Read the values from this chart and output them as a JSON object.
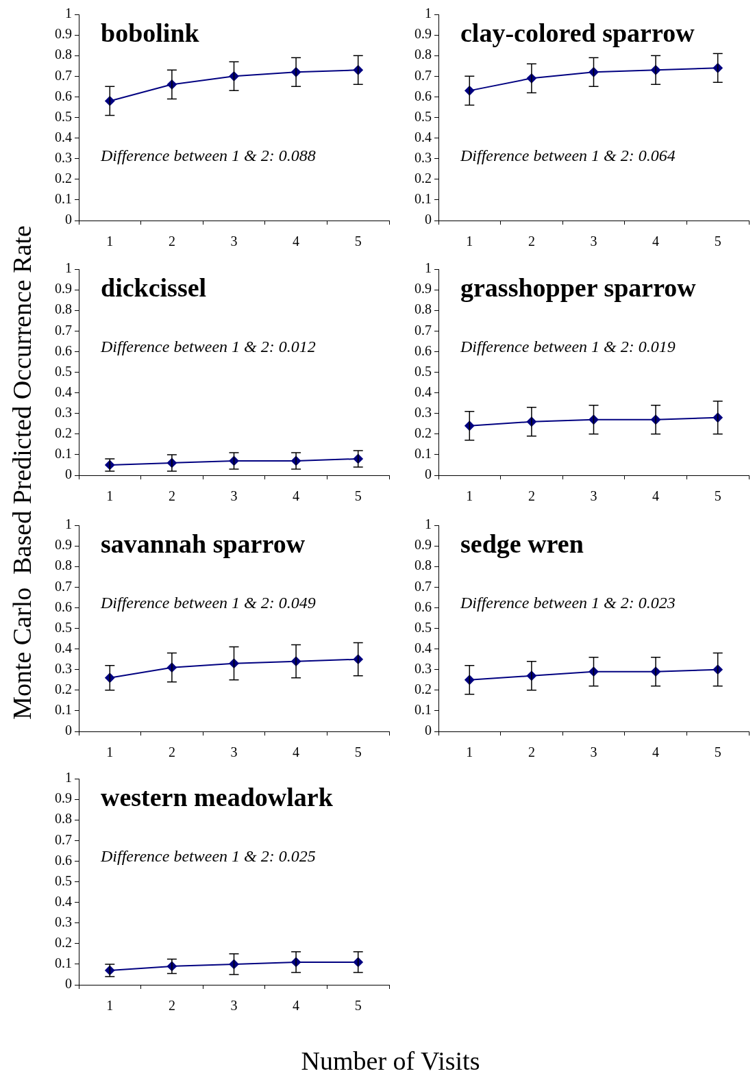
{
  "chart_data": [
    {
      "type": "line",
      "title": "bobolink",
      "annotations": [
        "Difference between 1 & 2: 0.088"
      ],
      "ylabel": "Monte Carlo  Based Predicted Occurrence Rate",
      "xlabel": "Number of Visits",
      "categories": [
        "1",
        "2",
        "3",
        "4",
        "5"
      ],
      "series": [
        {
          "color": "#000080",
          "values": [
            0.58,
            0.66,
            0.7,
            0.72,
            0.73
          ],
          "errors": [
            0.07,
            0.07,
            0.07,
            0.07,
            0.07
          ]
        }
      ],
      "ylim": [
        0,
        1
      ],
      "yticks": [
        0,
        0.1,
        0.2,
        0.3,
        0.4,
        0.5,
        0.6,
        0.7,
        0.8,
        0.9,
        1
      ],
      "grid": false,
      "legend": false,
      "marker": "diamond",
      "line_style": "solid"
    },
    {
      "type": "line",
      "title": "clay-colored sparrow",
      "annotations": [
        "Difference between 1 & 2: 0.064"
      ],
      "categories": [
        "1",
        "2",
        "3",
        "4",
        "5"
      ],
      "series": [
        {
          "color": "#000080",
          "values": [
            0.63,
            0.69,
            0.72,
            0.73,
            0.74
          ],
          "errors": [
            0.07,
            0.07,
            0.07,
            0.07,
            0.07
          ]
        }
      ],
      "ylim": [
        0,
        1
      ],
      "yticks": [
        0,
        0.1,
        0.2,
        0.3,
        0.4,
        0.5,
        0.6,
        0.7,
        0.8,
        0.9,
        1
      ],
      "grid": false,
      "legend": false,
      "marker": "diamond",
      "line_style": "solid"
    },
    {
      "type": "line",
      "title": "dickcissel",
      "annotations": [
        "Difference between 1 & 2: 0.012"
      ],
      "categories": [
        "1",
        "2",
        "3",
        "4",
        "5"
      ],
      "series": [
        {
          "color": "#000080",
          "values": [
            0.05,
            0.06,
            0.07,
            0.07,
            0.08
          ],
          "errors": [
            0.03,
            0.04,
            0.04,
            0.04,
            0.04
          ]
        }
      ],
      "ylim": [
        0,
        1
      ],
      "yticks": [
        0,
        0.1,
        0.2,
        0.3,
        0.4,
        0.5,
        0.6,
        0.7,
        0.8,
        0.9,
        1
      ],
      "grid": false,
      "legend": false,
      "marker": "diamond",
      "line_style": "solid"
    },
    {
      "type": "line",
      "title": "grasshopper sparrow",
      "annotations": [
        "Difference between 1 & 2: 0.019"
      ],
      "categories": [
        "1",
        "2",
        "3",
        "4",
        "5"
      ],
      "series": [
        {
          "color": "#000080",
          "values": [
            0.24,
            0.26,
            0.27,
            0.27,
            0.28
          ],
          "errors": [
            0.07,
            0.07,
            0.07,
            0.07,
            0.08
          ]
        }
      ],
      "ylim": [
        0,
        1
      ],
      "yticks": [
        0,
        0.1,
        0.2,
        0.3,
        0.4,
        0.5,
        0.6,
        0.7,
        0.8,
        0.9,
        1
      ],
      "grid": false,
      "legend": false,
      "marker": "diamond",
      "line_style": "solid"
    },
    {
      "type": "line",
      "title": "savannah sparrow",
      "annotations": [
        "Difference between 1 & 2: 0.049"
      ],
      "categories": [
        "1",
        "2",
        "3",
        "4",
        "5"
      ],
      "series": [
        {
          "color": "#000080",
          "values": [
            0.26,
            0.31,
            0.33,
            0.34,
            0.35
          ],
          "errors": [
            0.06,
            0.07,
            0.08,
            0.08,
            0.08
          ]
        }
      ],
      "ylim": [
        0,
        1
      ],
      "yticks": [
        0,
        0.1,
        0.2,
        0.3,
        0.4,
        0.5,
        0.6,
        0.7,
        0.8,
        0.9,
        1
      ],
      "grid": false,
      "legend": false,
      "marker": "diamond",
      "line_style": "solid"
    },
    {
      "type": "line",
      "title": "sedge wren",
      "annotations": [
        "Difference between 1 & 2: 0.023"
      ],
      "categories": [
        "1",
        "2",
        "3",
        "4",
        "5"
      ],
      "series": [
        {
          "color": "#000080",
          "values": [
            0.25,
            0.27,
            0.29,
            0.29,
            0.3
          ],
          "errors": [
            0.07,
            0.07,
            0.07,
            0.07,
            0.08
          ]
        }
      ],
      "ylim": [
        0,
        1
      ],
      "yticks": [
        0,
        0.1,
        0.2,
        0.3,
        0.4,
        0.5,
        0.6,
        0.7,
        0.8,
        0.9,
        1
      ],
      "grid": false,
      "legend": false,
      "marker": "diamond",
      "line_style": "solid"
    },
    {
      "type": "line",
      "title": "western meadowlark",
      "annotations": [
        "Difference between 1 & 2: 0.025"
      ],
      "categories": [
        "1",
        "2",
        "3",
        "4",
        "5"
      ],
      "series": [
        {
          "color": "#000080",
          "values": [
            0.07,
            0.09,
            0.1,
            0.11,
            0.11
          ],
          "errors": [
            0.03,
            0.035,
            0.05,
            0.05,
            0.05
          ]
        }
      ],
      "ylim": [
        0,
        1
      ],
      "yticks": [
        0,
        0.1,
        0.2,
        0.3,
        0.4,
        0.5,
        0.6,
        0.7,
        0.8,
        0.9,
        1
      ],
      "grid": false,
      "legend": false,
      "marker": "diamond",
      "line_style": "solid"
    }
  ]
}
